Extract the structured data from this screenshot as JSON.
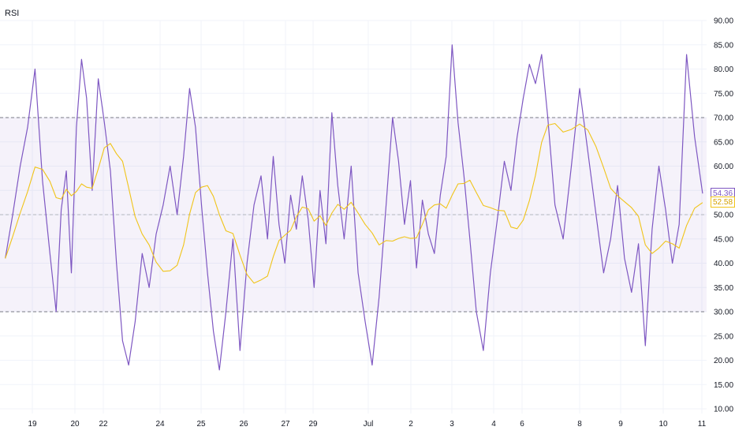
{
  "indicator": {
    "title": "RSI"
  },
  "chart_data": {
    "type": "line",
    "title": "RSI",
    "xlabel": "",
    "ylabel": "",
    "ylim": [
      10,
      90
    ],
    "y_ticks": [
      "90.00",
      "85.00",
      "80.00",
      "75.00",
      "70.00",
      "65.00",
      "60.00",
      "55.00",
      "50.00",
      "45.00",
      "40.00",
      "35.00",
      "30.00",
      "25.00",
      "20.00",
      "15.00",
      "10.00"
    ],
    "x_ticks": [
      "19",
      "20",
      "22",
      "24",
      "25",
      "26",
      "27",
      "29",
      "Jul",
      "2",
      "3",
      "4",
      "6",
      "8",
      "9",
      "10",
      "11"
    ],
    "bands": {
      "upper": 70,
      "middle": 50,
      "lower": 30
    },
    "series": [
      {
        "name": "",
        "color": "#7e57c2",
        "last_value": "54.36",
        "points": [
          [
            "19",
            41
          ],
          [
            "19",
            50
          ],
          [
            "19",
            60
          ],
          [
            "19",
            68
          ],
          [
            "19",
            80
          ],
          [
            "19",
            57
          ],
          [
            "19",
            42
          ],
          [
            "20",
            30
          ],
          [
            "20",
            51
          ],
          [
            "20",
            59
          ],
          [
            "20",
            38
          ],
          [
            "20",
            68
          ],
          [
            "20",
            82
          ],
          [
            "20",
            74
          ],
          [
            "22",
            55
          ],
          [
            "22",
            78
          ],
          [
            "22",
            69
          ],
          [
            "22",
            59
          ],
          [
            "22",
            40
          ],
          [
            "22",
            24
          ],
          [
            "22",
            19
          ],
          [
            "24",
            28
          ],
          [
            "24",
            42
          ],
          [
            "24",
            35
          ],
          [
            "24",
            46
          ],
          [
            "24",
            52
          ],
          [
            "24",
            60
          ],
          [
            "24",
            50
          ],
          [
            "25",
            62
          ],
          [
            "25",
            76
          ],
          [
            "25",
            68
          ],
          [
            "25",
            52
          ],
          [
            "25",
            38
          ],
          [
            "25",
            26
          ],
          [
            "25",
            18
          ],
          [
            "26",
            30
          ],
          [
            "26",
            45
          ],
          [
            "26",
            22
          ],
          [
            "26",
            40
          ],
          [
            "26",
            52
          ],
          [
            "26",
            58
          ],
          [
            "27",
            45
          ],
          [
            "27",
            62
          ],
          [
            "27",
            48
          ],
          [
            "27",
            40
          ],
          [
            "27",
            54
          ],
          [
            "27",
            47
          ],
          [
            "29",
            58
          ],
          [
            "29",
            49
          ],
          [
            "29",
            35
          ],
          [
            "29",
            55
          ],
          [
            "29",
            44
          ],
          [
            "29",
            71
          ],
          [
            "29",
            56
          ],
          [
            "Jul",
            45
          ],
          [
            "Jul",
            60
          ],
          [
            "Jul",
            38
          ],
          [
            "Jul",
            28
          ],
          [
            "Jul",
            19
          ],
          [
            "Jul",
            33
          ],
          [
            "Jul",
            52
          ],
          [
            "2",
            70
          ],
          [
            "2",
            61
          ],
          [
            "2",
            48
          ],
          [
            "2",
            57
          ],
          [
            "2",
            39
          ],
          [
            "2",
            53
          ],
          [
            "2",
            46
          ],
          [
            "3",
            42
          ],
          [
            "3",
            54
          ],
          [
            "3",
            62
          ],
          [
            "3",
            85
          ],
          [
            "3",
            69
          ],
          [
            "3",
            58
          ],
          [
            "3",
            45
          ],
          [
            "4",
            30
          ],
          [
            "4",
            22
          ],
          [
            "4",
            38
          ],
          [
            "4",
            49
          ],
          [
            "4",
            61
          ],
          [
            "6",
            55
          ],
          [
            "6",
            66
          ],
          [
            "6",
            74
          ],
          [
            "6",
            81
          ],
          [
            "6",
            77
          ],
          [
            "6",
            83
          ],
          [
            "6",
            70
          ],
          [
            "8",
            52
          ],
          [
            "8",
            45
          ],
          [
            "8",
            60
          ],
          [
            "8",
            76
          ],
          [
            "8",
            63
          ],
          [
            "8",
            50
          ],
          [
            "9",
            38
          ],
          [
            "9",
            45
          ],
          [
            "9",
            56
          ],
          [
            "9",
            41
          ],
          [
            "9",
            34
          ],
          [
            "9",
            44
          ],
          [
            "10",
            23
          ],
          [
            "10",
            47
          ],
          [
            "10",
            60
          ],
          [
            "10",
            51
          ],
          [
            "10",
            40
          ],
          [
            "10",
            48
          ],
          [
            "11",
            83
          ],
          [
            "11",
            66
          ],
          [
            "11",
            54.36
          ]
        ]
      },
      {
        "name": "",
        "color": "#f0c419",
        "last_value": "52.58",
        "smoothing_window": 9
      }
    ],
    "grid": true,
    "legend": "none"
  }
}
